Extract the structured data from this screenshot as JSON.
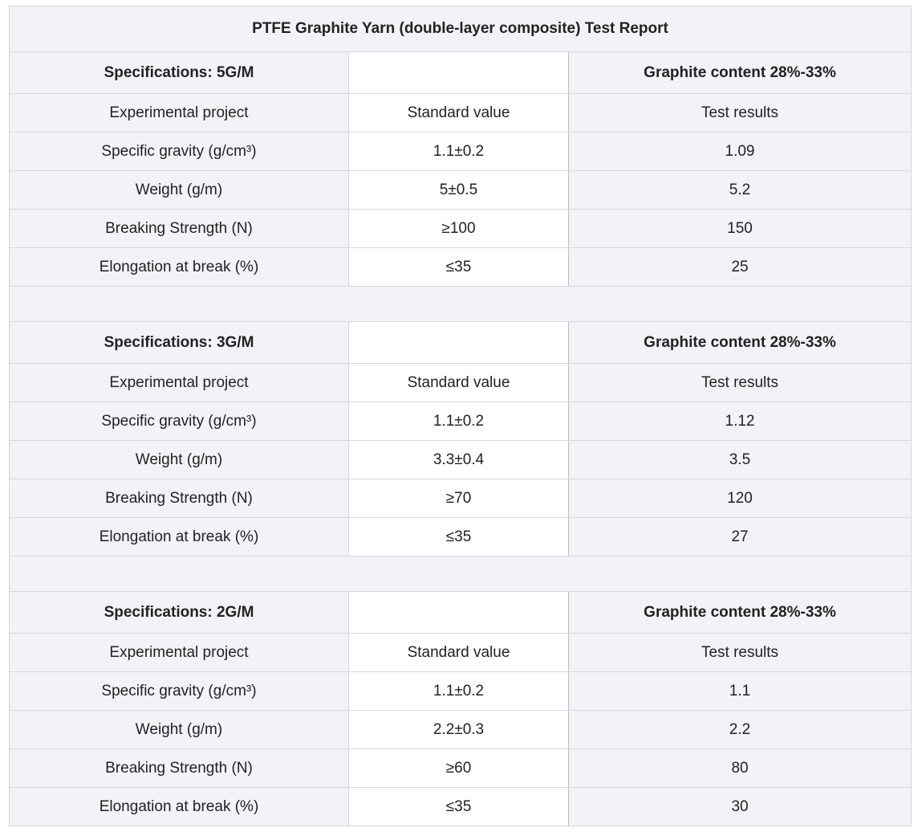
{
  "report": {
    "title": "PTFE Graphite Yarn (double-layer composite) Test Report",
    "sections": [
      {
        "specification": "Specifications: 5G/M",
        "graphite_content": "Graphite content 28%-33%",
        "headers": [
          "Experimental project",
          "Standard value",
          "Test results"
        ],
        "rows": [
          [
            "Specific gravity (g/cm³)",
            "1.1±0.2",
            "1.09"
          ],
          [
            "Weight (g/m)",
            "5±0.5",
            "5.2"
          ],
          [
            "Breaking Strength (N)",
            "≥100",
            "150"
          ],
          [
            "Elongation at break (%)",
            "≤35",
            "25"
          ]
        ]
      },
      {
        "specification": "Specifications: 3G/M",
        "graphite_content": "Graphite content 28%-33%",
        "headers": [
          "Experimental project",
          "Standard value",
          "Test results"
        ],
        "rows": [
          [
            "Specific gravity (g/cm³)",
            "1.1±0.2",
            "1.12"
          ],
          [
            "Weight (g/m)",
            "3.3±0.4",
            "3.5"
          ],
          [
            "Breaking Strength (N)",
            "≥70",
            "120"
          ],
          [
            "Elongation at break (%)",
            "≤35",
            "27"
          ]
        ]
      },
      {
        "specification": "Specifications: 2G/M",
        "graphite_content": "Graphite content 28%-33%",
        "headers": [
          "Experimental project",
          "Standard value",
          "Test results"
        ],
        "rows": [
          [
            "Specific gravity (g/cm³)",
            "1.1±0.2",
            "1.1"
          ],
          [
            "Weight (g/m)",
            "2.2±0.3",
            "2.2"
          ],
          [
            "Breaking Strength (N)",
            "≥60",
            "80"
          ],
          [
            "Elongation at break (%)",
            "≤35",
            "30"
          ]
        ]
      }
    ]
  },
  "colors": {
    "header_background": "#f1f3f6",
    "cell_background": "#ffffff",
    "border": "#d4d8de",
    "text": "#222222"
  }
}
